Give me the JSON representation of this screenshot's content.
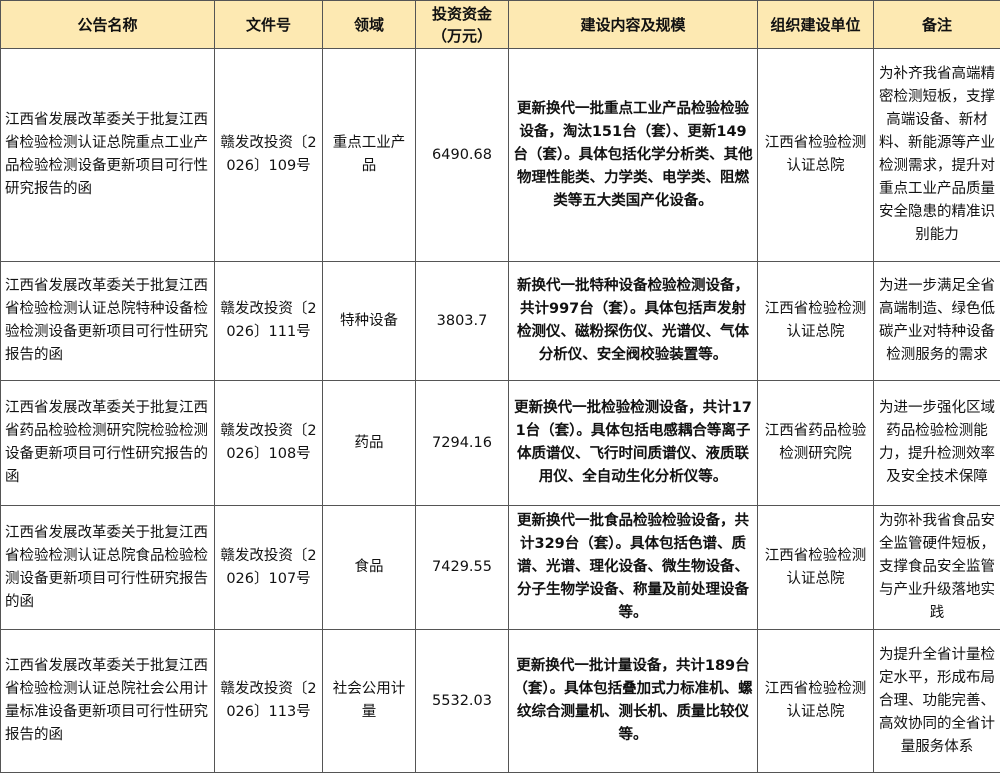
{
  "headers": [
    "公告名称",
    "文件号",
    "领域",
    "投资资金（万元）",
    "建设内容及规模",
    "组织建设单位",
    "备注"
  ],
  "rows": [
    {
      "name": "江西省发展改革委关于批复江西省检验检测认证总院重点工业产品检验检测设备更新项目可行性研究报告的函",
      "doc": "赣发改投资〔2026〕109号",
      "field": "重点工业产品",
      "fund": "6490.68",
      "content": "更新换代一批重点工业产品检验检验设备，淘汰151台（套）、更新149台（套）。具体包括化学分析类、其他物理性能类、力学类、电学类、阻燃类等五大类国产化设备。",
      "unit": "江西省检验检测认证总院",
      "note": "为补齐我省高端精密检测短板，支撑高端设备、新材料、新能源等产业检测需求，提升对重点工业产品质量安全隐患的精准识别能力"
    },
    {
      "name": "江西省发展改革委关于批复江西省检验检测认证总院特种设备检验检测设备更新项目可行性研究报告的函",
      "doc": "赣发改投资〔2026〕111号",
      "field": "特种设备",
      "fund": "3803.7",
      "content": "新换代一批特种设备检验检测设备，共计997台（套）。具体包括声发射检测仪、磁粉探伤仪、光谱仪、气体分析仪、安全阀校验装置等。",
      "unit": "江西省检验检测认证总院",
      "note": "为进一步满足全省高端制造、绿色低碳产业对特种设备检测服务的需求"
    },
    {
      "name": "江西省发展改革委关于批复江西省药品检验检测研究院检验检测设备更新项目可行性研究报告的函",
      "doc": "赣发改投资〔2026〕108号",
      "field": "药品",
      "fund": "7294.16",
      "content": "更新换代一批检验检测设备，共计171台（套）。具体包括电感耦合等离子体质谱仪、飞行时间质谱仪、液质联用仪、全自动生化分析仪等。",
      "unit": "江西省药品检验检测研究院",
      "note": "为进一步强化区域药品检验检测能力，提升检测效率及安全技术保障"
    },
    {
      "name": "江西省发展改革委关于批复江西省检验检测认证总院食品检验检测设备更新项目可行性研究报告的函",
      "doc": "赣发改投资〔2026〕107号",
      "field": "食品",
      "fund": "7429.55",
      "content": "更新换代一批食品检验检验设备，共计329台（套）。具体包括色谱、质谱、光谱、理化设备、微生物设备、分子生物学设备、称量及前处理设备等。",
      "unit": "江西省检验检测认证总院",
      "note": "为弥补我省食品安全监管硬件短板，支撑食品安全监管与产业升级落地实践"
    },
    {
      "name": "江西省发展改革委关于批复江西省检验检测认证总院社会公用计量标准设备更新项目可行性研究报告的函",
      "doc": "赣发改投资〔2026〕113号",
      "field": "社会公用计量",
      "fund": "5532.03",
      "content": "更新换代一批计量设备，共计189台（套）。具体包括叠加式力标准机、螺纹综合测量机、测长机、质量比较仪等。",
      "unit": "江西省检验检测认证总院",
      "note": "为提升全省计量检定水平，形成布局合理、功能完善、高效协同的全省计量服务体系"
    }
  ]
}
